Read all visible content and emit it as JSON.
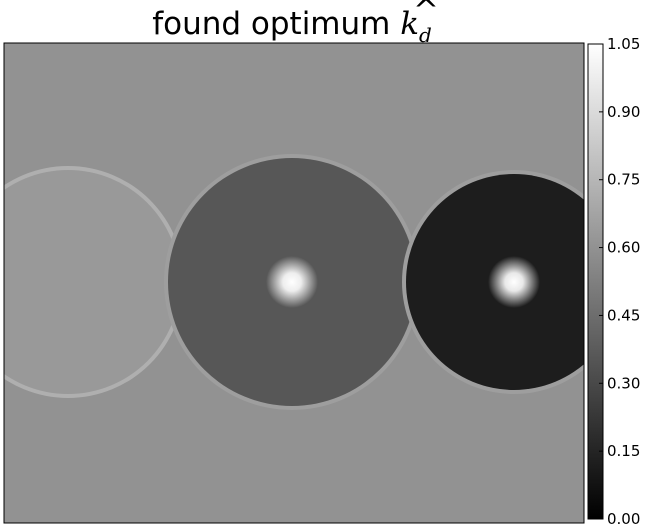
{
  "chart_data": {
    "type": "heatmap",
    "title": {
      "text": "found optimum ",
      "symbol": "k",
      "accent": "^",
      "subscript": "d"
    },
    "colormap": "gray",
    "colorbar": {
      "vmin": 0.0,
      "vmax": 1.05,
      "ticks": [
        "0.00",
        "0.15",
        "0.30",
        "0.45",
        "0.60",
        "0.75",
        "0.90",
        "1.05"
      ]
    },
    "background_value": 0.6,
    "disks": [
      {
        "label": "left",
        "fill_value": 0.63,
        "rim_value": 0.72,
        "peak_value": null
      },
      {
        "label": "center",
        "fill_value": 0.36,
        "rim_value": 0.65,
        "peak_value": 1.05
      },
      {
        "label": "right",
        "fill_value": 0.12,
        "rim_value": 0.65,
        "peak_value": 1.05
      }
    ],
    "xaxis_ticks_shown": false,
    "yaxis_ticks_shown": false
  }
}
